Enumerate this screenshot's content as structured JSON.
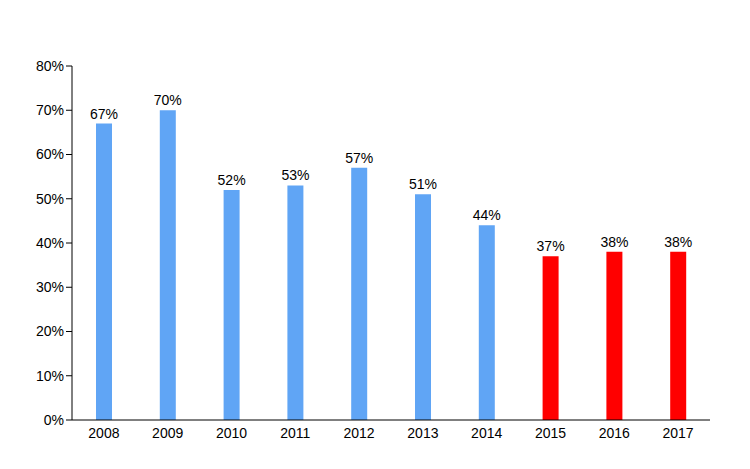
{
  "chart_data": {
    "type": "bar",
    "categories": [
      "2008",
      "2009",
      "2010",
      "2011",
      "2012",
      "2013",
      "2014",
      "2015",
      "2016",
      "2017"
    ],
    "values": [
      67,
      70,
      52,
      53,
      57,
      51,
      44,
      37,
      38,
      38
    ],
    "value_labels": [
      "67%",
      "70%",
      "52%",
      "53%",
      "57%",
      "51%",
      "44%",
      "37%",
      "38%",
      "38%"
    ],
    "colors": [
      "#60a5f5",
      "#60a5f5",
      "#60a5f5",
      "#60a5f5",
      "#60a5f5",
      "#60a5f5",
      "#60a5f5",
      "#ff0000",
      "#ff0000",
      "#ff0000"
    ],
    "ylim": [
      0,
      80
    ],
    "yticks": [
      {
        "value": 0,
        "label": "0%"
      },
      {
        "value": 10,
        "label": "10%"
      },
      {
        "value": 20,
        "label": "20%"
      },
      {
        "value": 30,
        "label": "30%"
      },
      {
        "value": 40,
        "label": "40%"
      },
      {
        "value": 50,
        "label": "50%"
      },
      {
        "value": 60,
        "label": "60%"
      },
      {
        "value": 70,
        "label": "70%"
      },
      {
        "value": 80,
        "label": "80%"
      }
    ],
    "grid": false,
    "data_labels": true
  }
}
